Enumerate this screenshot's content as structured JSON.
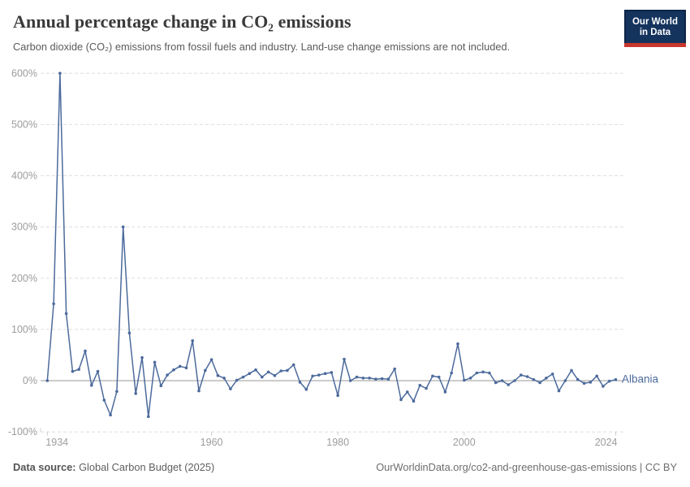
{
  "header": {
    "title": "Annual percentage change in CO₂ emissions",
    "subtitle": "Carbon dioxide (CO₂) emissions from fossil fuels and industry. Land-use change emissions are not included."
  },
  "logo": {
    "line1": "Our World",
    "line2": "in Data",
    "bg_color": "#14335d",
    "accent_color": "#c7372e"
  },
  "footer": {
    "source_label": "Data source:",
    "source_value": " Global Carbon Budget (2025)",
    "right_text": "OurWorldinData.org/co2-and-greenhouse-gas-emissions | CC BY"
  },
  "chart_data": {
    "type": "line",
    "title": "Annual percentage change in CO₂ emissions",
    "xlabel": "",
    "ylabel": "",
    "xlim": [
      1934,
      2024
    ],
    "ylim": [
      -100,
      600
    ],
    "x_ticks": [
      1934,
      1960,
      1980,
      2000,
      2024
    ],
    "y_ticks": [
      600,
      500,
      400,
      300,
      200,
      100,
      0,
      -100
    ],
    "y_tick_suffix": "%",
    "grid": "horizontal-dashed",
    "zero_line": true,
    "legend_position": "end-of-line-label",
    "series": [
      {
        "name": "Albania",
        "color": "#4C6A9C",
        "years": [
          1934,
          1935,
          1936,
          1937,
          1938,
          1939,
          1940,
          1941,
          1942,
          1943,
          1944,
          1945,
          1946,
          1947,
          1948,
          1949,
          1950,
          1951,
          1952,
          1953,
          1954,
          1955,
          1956,
          1957,
          1958,
          1959,
          1960,
          1961,
          1962,
          1963,
          1964,
          1965,
          1966,
          1967,
          1968,
          1969,
          1970,
          1971,
          1972,
          1973,
          1974,
          1975,
          1976,
          1977,
          1978,
          1979,
          1980,
          1981,
          1982,
          1983,
          1984,
          1985,
          1986,
          1987,
          1988,
          1989,
          1990,
          1991,
          1992,
          1993,
          1994,
          1995,
          1996,
          1997,
          1998,
          1999,
          2000,
          2001,
          2002,
          2003,
          2004,
          2005,
          2006,
          2007,
          2008,
          2009,
          2010,
          2011,
          2012,
          2013,
          2014,
          2015,
          2016,
          2017,
          2018,
          2019,
          2020,
          2021,
          2022,
          2023,
          2024
        ],
        "values": [
          0,
          150,
          600,
          131,
          18,
          22,
          58,
          -9,
          18,
          -38,
          -67,
          -21,
          300,
          93,
          -25,
          45,
          -70,
          36,
          -10,
          11,
          21,
          28,
          25,
          78,
          -20,
          20,
          41,
          10,
          5,
          -16,
          1,
          7,
          14,
          21,
          7,
          17,
          10,
          19,
          20,
          31,
          -3,
          -17,
          9,
          11,
          14,
          16,
          -29,
          42,
          0,
          7,
          5,
          5,
          3,
          4,
          3,
          23,
          -37,
          -22,
          -40,
          -9,
          -15,
          9,
          7,
          -22,
          15,
          72,
          1,
          5,
          15,
          17,
          15,
          -4,
          0,
          -8,
          0,
          11,
          8,
          2,
          -4,
          5,
          13,
          -20,
          0,
          20,
          2,
          -5,
          -3,
          9,
          -11,
          -1,
          2
        ]
      }
    ],
    "colors": {
      "line": "#4C6A9C",
      "gridline": "#dedede",
      "zero_line": "#9a9a9a",
      "axis_text": "#9c9c9c",
      "tick": "#cfcfcf"
    }
  }
}
